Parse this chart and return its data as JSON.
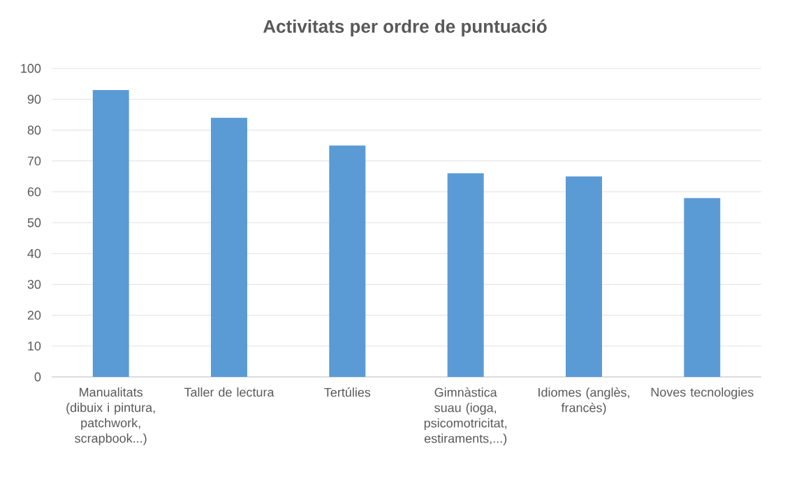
{
  "chart_data": {
    "type": "bar",
    "title": "Activitats per ordre de puntuació",
    "categories": [
      "Manualitats (dibuix i pintura, patchwork, scrapbook...)",
      "Taller de lectura",
      "Tertúlies",
      "Gimnàstica suau (ioga, psicomotricitat, estiraments,...)",
      "Idiomes (anglès, francès)",
      "Noves tecnologies"
    ],
    "values": [
      93,
      84,
      75,
      66,
      65,
      58
    ],
    "color": "#5b9bd5",
    "ylim": [
      0,
      100
    ],
    "yticks": [
      0,
      10,
      20,
      30,
      40,
      50,
      60,
      70,
      80,
      90,
      100
    ],
    "grid": "y"
  }
}
